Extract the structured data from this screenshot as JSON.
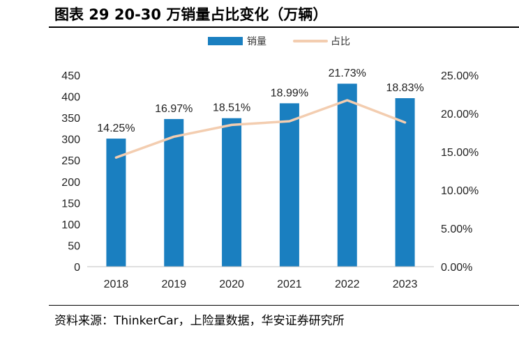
{
  "title": "图表 29 20-30 万销量占比变化（万辆）",
  "source": "资料来源：ThinkerCar，上险量数据，华安证券研究所",
  "chart_data": {
    "type": "bar",
    "title": "图表 29 20-30 万销量占比变化（万辆）",
    "categories": [
      "2018",
      "2019",
      "2020",
      "2021",
      "2022",
      "2023"
    ],
    "series": [
      {
        "name": "销量",
        "type": "bar",
        "axis": "left",
        "color": "#1a7fc0",
        "values": [
          301,
          347,
          349,
          384,
          430,
          396
        ]
      },
      {
        "name": "占比",
        "type": "line",
        "axis": "right",
        "color": "#f3cdb0",
        "values": [
          14.25,
          16.97,
          18.51,
          18.99,
          21.73,
          18.83
        ],
        "labels": [
          "14.25%",
          "16.97%",
          "18.51%",
          "18.99%",
          "21.73%",
          "18.83%"
        ]
      }
    ],
    "y_left": {
      "min": 0,
      "max": 450,
      "step": 50,
      "ticks": [
        "0",
        "50",
        "100",
        "150",
        "200",
        "250",
        "300",
        "350",
        "400",
        "450"
      ]
    },
    "y_right": {
      "min": 0,
      "max": 25,
      "step": 5,
      "ticks": [
        "0.00%",
        "5.00%",
        "10.00%",
        "15.00%",
        "20.00%",
        "25.00%"
      ]
    },
    "grid": false,
    "legend_position": "top-center"
  }
}
